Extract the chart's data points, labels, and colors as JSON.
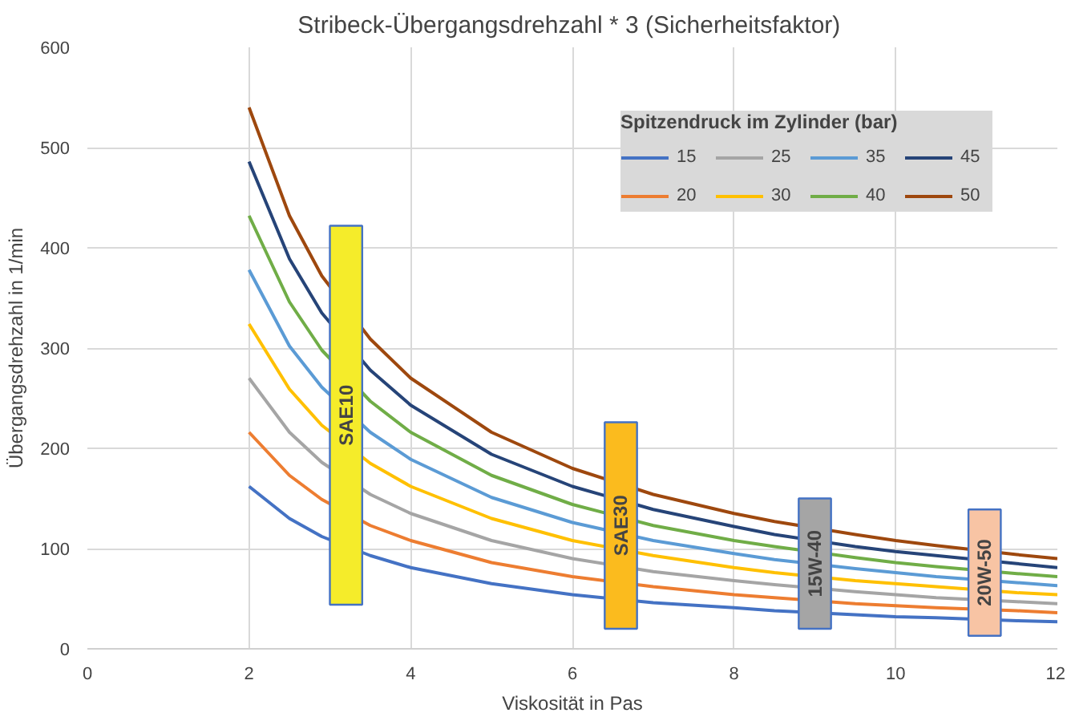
{
  "chart_data": {
    "type": "line",
    "title": "Stribeck-Übergangsdrehzahl  * 3 (Sicherheitsfaktor)",
    "xlabel": "Viskosität in Pas",
    "ylabel": "Übergangsdrehzahl in 1/min",
    "legend_title": "Spitzendruck im Zylinder (bar)",
    "x": [
      2,
      2.5,
      2.9,
      3.5,
      4,
      5,
      6,
      7,
      8,
      8.5,
      9.5,
      10,
      10.5,
      11.5,
      12
    ],
    "series": [
      {
        "name": "15",
        "color": "#4472c4",
        "values": [
          162,
          130,
          112,
          93,
          81,
          65,
          54,
          46,
          41,
          38,
          34,
          32,
          31,
          28,
          27
        ]
      },
      {
        "name": "20",
        "color": "#ed7d31",
        "values": [
          216,
          173,
          149,
          123,
          108,
          86,
          72,
          62,
          54,
          51,
          45,
          43,
          41,
          38,
          36
        ]
      },
      {
        "name": "25",
        "color": "#a5a5a5",
        "values": [
          270,
          216,
          186,
          154,
          135,
          108,
          90,
          77,
          68,
          64,
          57,
          54,
          51,
          47,
          45
        ]
      },
      {
        "name": "30",
        "color": "#ffc000",
        "values": [
          324,
          259,
          223,
          185,
          162,
          130,
          108,
          93,
          81,
          76,
          68,
          65,
          62,
          56,
          54
        ]
      },
      {
        "name": "35",
        "color": "#5b9bd5",
        "values": [
          378,
          302,
          261,
          216,
          189,
          151,
          126,
          108,
          95,
          89,
          80,
          76,
          72,
          66,
          63
        ]
      },
      {
        "name": "40",
        "color": "#70ad47",
        "values": [
          432,
          346,
          298,
          247,
          216,
          173,
          144,
          123,
          108,
          102,
          91,
          86,
          82,
          75,
          72
        ]
      },
      {
        "name": "45",
        "color": "#264478",
        "values": [
          486,
          389,
          335,
          278,
          243,
          194,
          162,
          139,
          122,
          114,
          102,
          97,
          93,
          85,
          81
        ]
      },
      {
        "name": "50",
        "color": "#9e480e",
        "values": [
          540,
          432,
          372,
          309,
          270,
          216,
          180,
          154,
          135,
          127,
          114,
          108,
          103,
          94,
          90
        ]
      },
      {
        "type": "bar",
        "x": [
          3.2,
          6.6,
          9.0,
          11.1
        ],
        "base": [
          44,
          20,
          20,
          13
        ],
        "values": [
          378,
          206,
          130,
          126
        ],
        "colors": [
          "#f5ec2a",
          "#fbbb1e",
          "#a5a5a5",
          "#f8c4a4"
        ]
      }
    ],
    "annotations": [
      {
        "text": "SAE10",
        "x": 3.2,
        "y": 233
      },
      {
        "text": "SAE30",
        "x": 6.6,
        "y": 123
      },
      {
        "text": "15W-40",
        "x": 9.0,
        "y": 85
      },
      {
        "text": "20W-50",
        "x": 11.1,
        "y": 76
      }
    ],
    "xlim": [
      0,
      12
    ],
    "xticks": [
      0,
      2,
      4,
      6,
      8,
      10,
      12
    ],
    "ylim": [
      0,
      600
    ],
    "yticks": [
      0,
      100,
      200,
      300,
      400,
      500,
      600
    ],
    "grid": true,
    "legend": "top right"
  }
}
